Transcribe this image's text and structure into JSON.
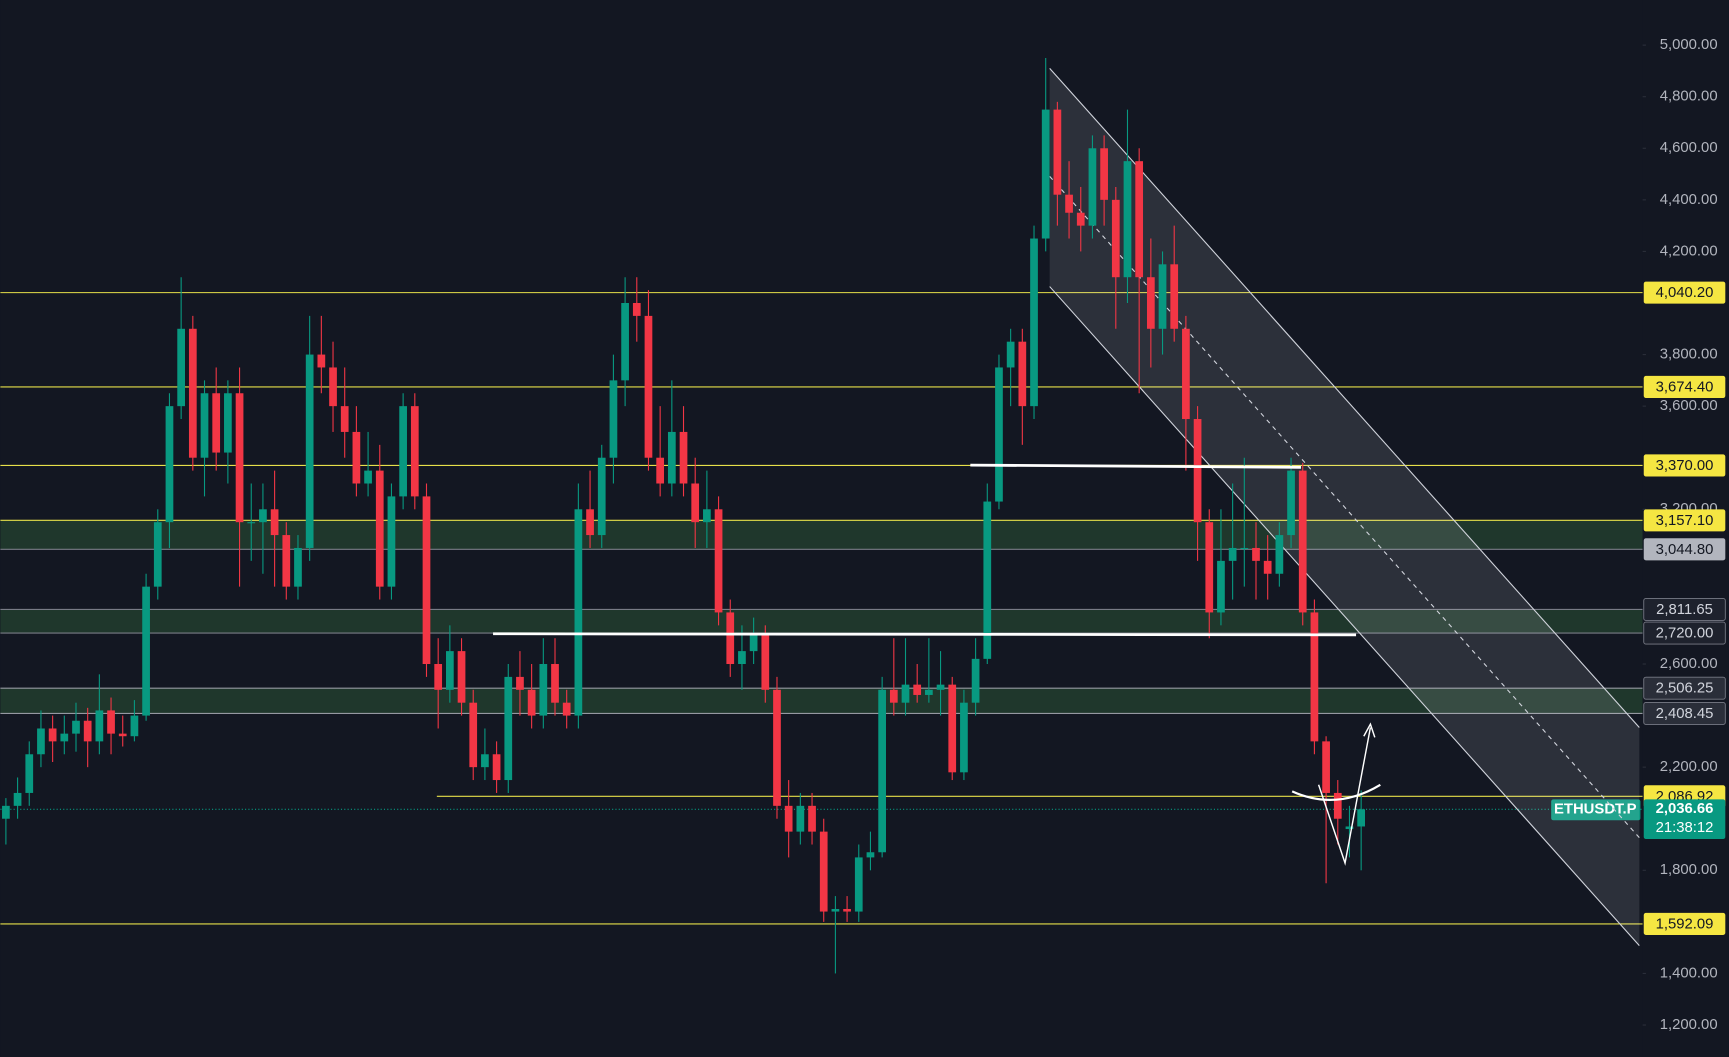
{
  "chart_data": {
    "type": "candlestick",
    "up_color": "#089981",
    "down_color": "#f23645",
    "ylim": [
      1076,
      5175
    ],
    "yticks": [
      {
        "value": 5000,
        "label": "5,000.00"
      },
      {
        "value": 4800,
        "label": "4,800.00"
      },
      {
        "value": 4600,
        "label": "4,600.00"
      },
      {
        "value": 4400,
        "label": "4,400.00"
      },
      {
        "value": 4200,
        "label": "4,200.00"
      },
      {
        "value": 3800,
        "label": "3,800.00"
      },
      {
        "value": 3600,
        "label": "3,600.00"
      },
      {
        "value": 3200,
        "label": "3,200.00"
      },
      {
        "value": 2600,
        "label": "2,600.00"
      },
      {
        "value": 2200,
        "label": "2,200.00"
      },
      {
        "value": 1800,
        "label": "1,800.00"
      },
      {
        "value": 1400,
        "label": "1,400.00"
      },
      {
        "value": 1200,
        "label": "1,200.00"
      }
    ],
    "levels": [
      {
        "value": 4040.2,
        "label": "4,040.20",
        "color": "#e6e04a",
        "badge": "#f5e642"
      },
      {
        "value": 3674.4,
        "label": "3,674.40",
        "color": "#e6e04a",
        "badge": "#f5e642"
      },
      {
        "value": 3370,
        "label": "3,370.00",
        "color": "#e6e04a",
        "badge": "#f5e642"
      },
      {
        "value": 3157.1,
        "label": "3,157.10",
        "color": "#e6e04a",
        "badge": "#f5e642"
      },
      {
        "value": 3044.8,
        "label": "3,044.80",
        "color": "#787b86",
        "badge": "#b2b5be"
      },
      {
        "value": 2811.65,
        "label": "2,811.65",
        "color": "#787b86",
        "badge": "#1e222d"
      },
      {
        "value": 2720,
        "label": "2,720.00",
        "color": "#787b86",
        "badge": "#1e222d"
      },
      {
        "value": 2506.25,
        "label": "2,506.25",
        "color": "#9598a1",
        "badge": "#2a2e39"
      },
      {
        "value": 2408.45,
        "label": "2,408.45",
        "color": "#9598a1",
        "badge": "#2a2e39"
      },
      {
        "value": 2086.92,
        "label": "2,086.92",
        "color": "#e6e04a",
        "badge": "#f5e642"
      },
      {
        "value": 1592.09,
        "label": "1,592.09",
        "color": "#e6e04a",
        "badge": "#f5e642"
      }
    ],
    "zones": [
      {
        "top": 3157.1,
        "bottom": 3044.8,
        "color": "#4caf50"
      },
      {
        "top": 2811.65,
        "bottom": 2720,
        "color": "#4caf50"
      },
      {
        "top": 2506.25,
        "bottom": 2408.45,
        "color": "#4caf50"
      }
    ],
    "last": {
      "value": 2036.66,
      "label": "2,036.66",
      "symbol": "ETHUSDT.P",
      "countdown": "21:38:12",
      "color": "#089981"
    },
    "candles": [
      [
        2000,
        2080,
        1900,
        2050
      ],
      [
        2050,
        2160,
        2000,
        2100
      ],
      [
        2100,
        2300,
        2050,
        2250
      ],
      [
        2250,
        2420,
        2200,
        2350
      ],
      [
        2350,
        2400,
        2220,
        2300
      ],
      [
        2300,
        2400,
        2250,
        2330
      ],
      [
        2330,
        2450,
        2260,
        2380
      ],
      [
        2380,
        2430,
        2200,
        2300
      ],
      [
        2300,
        2560,
        2250,
        2420
      ],
      [
        2420,
        2470,
        2250,
        2330
      ],
      [
        2330,
        2400,
        2280,
        2320
      ],
      [
        2320,
        2460,
        2300,
        2400
      ],
      [
        2400,
        2950,
        2380,
        2900
      ],
      [
        2900,
        3200,
        2850,
        3150
      ],
      [
        3150,
        3650,
        3050,
        3600
      ],
      [
        3600,
        4100,
        3550,
        3900
      ],
      [
        3900,
        3950,
        3350,
        3400
      ],
      [
        3400,
        3700,
        3250,
        3650
      ],
      [
        3650,
        3750,
        3350,
        3420
      ],
      [
        3420,
        3700,
        3300,
        3650
      ],
      [
        3650,
        3750,
        2900,
        3150
      ],
      [
        3150,
        3300,
        3000,
        3150
      ],
      [
        3150,
        3300,
        2950,
        3200
      ],
      [
        3200,
        3350,
        2900,
        3100
      ],
      [
        3100,
        3150,
        2850,
        2900
      ],
      [
        2900,
        3100,
        2850,
        3050
      ],
      [
        3050,
        3950,
        3000,
        3800
      ],
      [
        3800,
        3950,
        3650,
        3750
      ],
      [
        3750,
        3850,
        3500,
        3600
      ],
      [
        3600,
        3750,
        3400,
        3500
      ],
      [
        3500,
        3600,
        3250,
        3300
      ],
      [
        3300,
        3500,
        3250,
        3350
      ],
      [
        3350,
        3450,
        2850,
        2900
      ],
      [
        2900,
        3300,
        2850,
        3250
      ],
      [
        3250,
        3650,
        3200,
        3600
      ],
      [
        3600,
        3650,
        3200,
        3250
      ],
      [
        3250,
        3300,
        2550,
        2600
      ],
      [
        2600,
        2700,
        2350,
        2500
      ],
      [
        2500,
        2750,
        2450,
        2650
      ],
      [
        2650,
        2700,
        2400,
        2450
      ],
      [
        2450,
        2500,
        2150,
        2200
      ],
      [
        2200,
        2350,
        2150,
        2250
      ],
      [
        2250,
        2300,
        2100,
        2150
      ],
      [
        2150,
        2600,
        2100,
        2550
      ],
      [
        2550,
        2650,
        2400,
        2500
      ],
      [
        2500,
        2600,
        2350,
        2400
      ],
      [
        2400,
        2700,
        2350,
        2600
      ],
      [
        2600,
        2700,
        2400,
        2450
      ],
      [
        2450,
        2500,
        2350,
        2400
      ],
      [
        2400,
        3300,
        2350,
        3200
      ],
      [
        3200,
        3350,
        3050,
        3100
      ],
      [
        3100,
        3450,
        3050,
        3400
      ],
      [
        3400,
        3800,
        3300,
        3700
      ],
      [
        3700,
        4100,
        3600,
        4000
      ],
      [
        4000,
        4100,
        3850,
        3950
      ],
      [
        3950,
        4050,
        3350,
        3400
      ],
      [
        3400,
        3600,
        3250,
        3300
      ],
      [
        3300,
        3700,
        3250,
        3500
      ],
      [
        3500,
        3600,
        3250,
        3300
      ],
      [
        3300,
        3400,
        3050,
        3150
      ],
      [
        3150,
        3350,
        3050,
        3200
      ],
      [
        3200,
        3250,
        2750,
        2800
      ],
      [
        2800,
        2850,
        2550,
        2600
      ],
      [
        2600,
        2750,
        2500,
        2650
      ],
      [
        2650,
        2780,
        2600,
        2720
      ],
      [
        2720,
        2750,
        2450,
        2500
      ],
      [
        2500,
        2550,
        2000,
        2050
      ],
      [
        2050,
        2150,
        1850,
        1950
      ],
      [
        1950,
        2100,
        1900,
        2050
      ],
      [
        2050,
        2100,
        1900,
        1950
      ],
      [
        1950,
        2000,
        1600,
        1640
      ],
      [
        1640,
        1700,
        1400,
        1650
      ],
      [
        1650,
        1700,
        1600,
        1640
      ],
      [
        1640,
        1900,
        1600,
        1850
      ],
      [
        1850,
        1950,
        1800,
        1870
      ],
      [
        1870,
        2550,
        1850,
        2500
      ],
      [
        2500,
        2700,
        2400,
        2450
      ],
      [
        2450,
        2700,
        2400,
        2520
      ],
      [
        2520,
        2600,
        2450,
        2480
      ],
      [
        2480,
        2700,
        2450,
        2500
      ],
      [
        2500,
        2650,
        2400,
        2520
      ],
      [
        2520,
        2550,
        2150,
        2180
      ],
      [
        2180,
        2500,
        2150,
        2450
      ],
      [
        2450,
        2700,
        2400,
        2620
      ],
      [
        2620,
        3300,
        2600,
        3230
      ],
      [
        3230,
        3800,
        3200,
        3750
      ],
      [
        3750,
        3900,
        3600,
        3850
      ],
      [
        3850,
        3900,
        3450,
        3600
      ],
      [
        3600,
        4300,
        3550,
        4250
      ],
      [
        4250,
        4950,
        4200,
        4750
      ],
      [
        4750,
        4780,
        4300,
        4420
      ],
      [
        4420,
        4550,
        4250,
        4350
      ],
      [
        4350,
        4450,
        4200,
        4300
      ],
      [
        4300,
        4650,
        4250,
        4600
      ],
      [
        4600,
        4650,
        4300,
        4400
      ],
      [
        4400,
        4450,
        3900,
        4100
      ],
      [
        4100,
        4750,
        4000,
        4550
      ],
      [
        4550,
        4600,
        3650,
        4100
      ],
      [
        4100,
        4250,
        3750,
        3900
      ],
      [
        3900,
        4200,
        3800,
        4150
      ],
      [
        4150,
        4300,
        3850,
        3900
      ],
      [
        3900,
        3950,
        3350,
        3550
      ],
      [
        3550,
        3600,
        3000,
        3150
      ],
      [
        3150,
        3200,
        2700,
        2800
      ],
      [
        2800,
        3200,
        2750,
        3000
      ],
      [
        3000,
        3300,
        2850,
        3050
      ],
      [
        3050,
        3400,
        2900,
        3050
      ],
      [
        3050,
        3150,
        2850,
        3000
      ],
      [
        3000,
        3100,
        2850,
        2950
      ],
      [
        2950,
        3150,
        2900,
        3100
      ],
      [
        3100,
        3400,
        3050,
        3350
      ],
      [
        3350,
        3380,
        2750,
        2800
      ],
      [
        2800,
        2850,
        2250,
        2300
      ],
      [
        2300,
        2320,
        1750,
        2100
      ],
      [
        2100,
        2150,
        1900,
        2000
      ],
      [
        1960,
        2050,
        1850,
        1970
      ],
      [
        1970,
        2110,
        1800,
        2036.66
      ]
    ]
  }
}
